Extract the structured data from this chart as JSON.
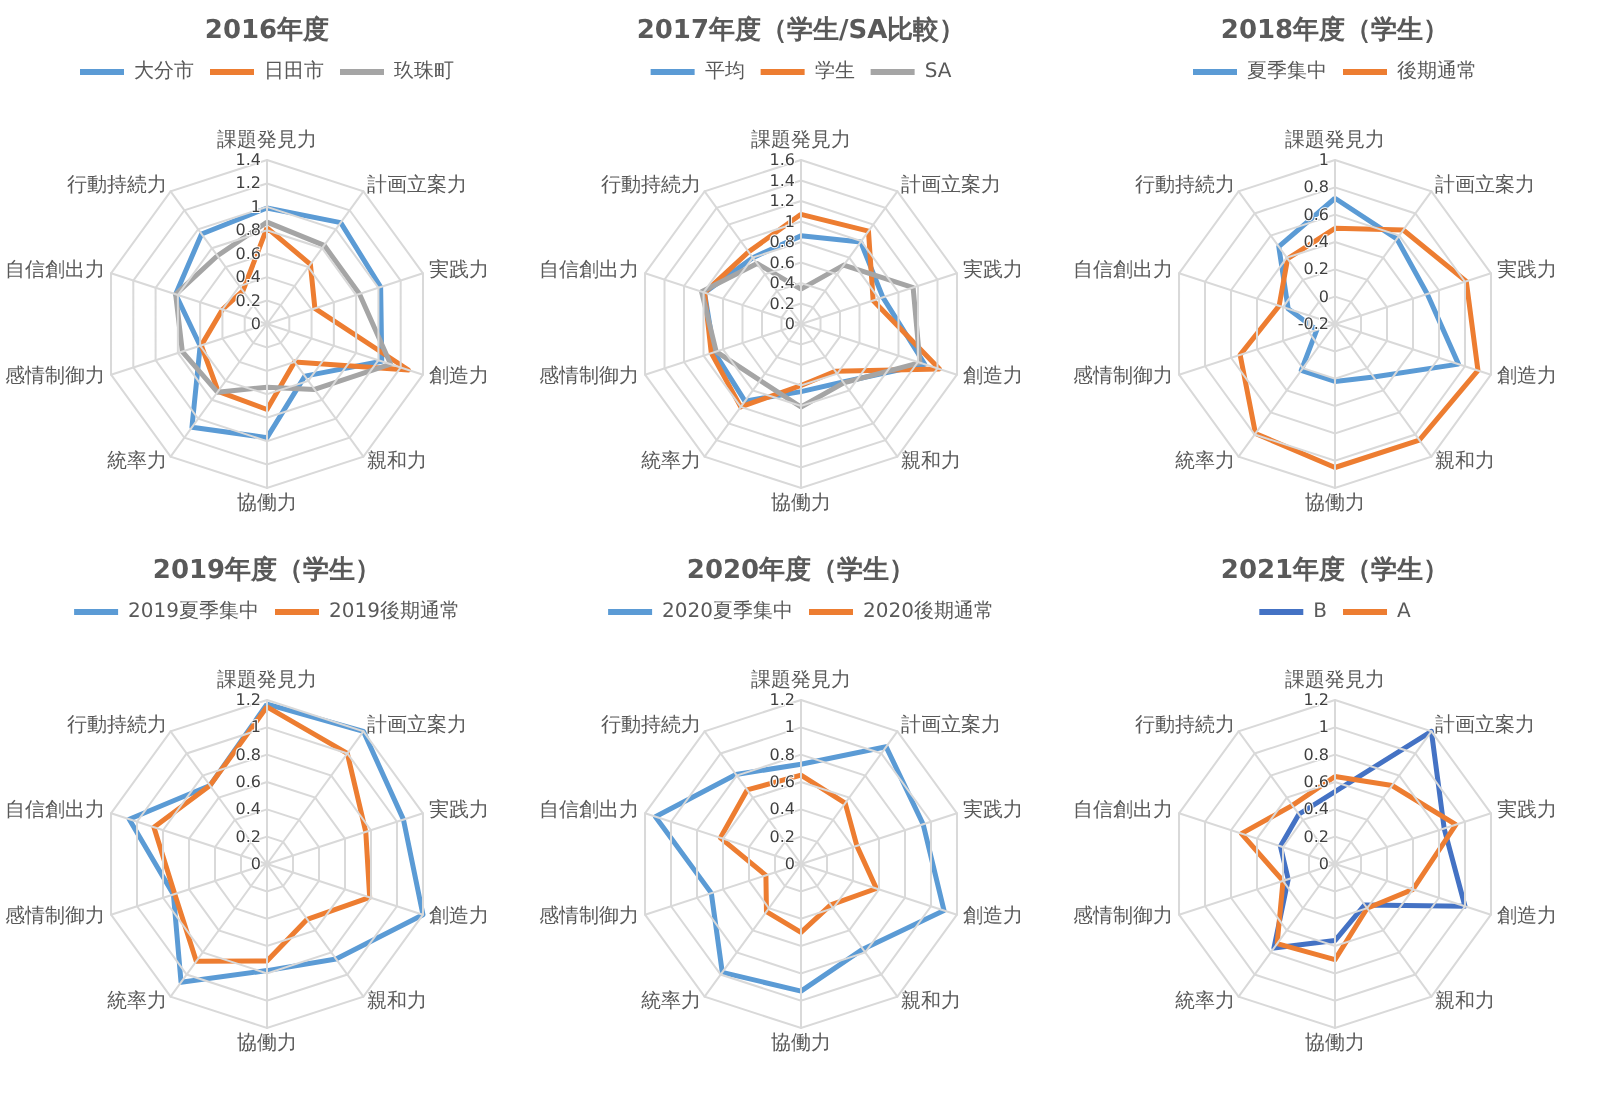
{
  "chart_data": [
    {
      "type": "radar",
      "title": "2016年度",
      "categories": [
        "課題発見力",
        "計画立案力",
        "実践力",
        "創造力",
        "親和力",
        "協働力",
        "統率力",
        "感情制御力",
        "自信創出力",
        "行動持続力"
      ],
      "ylim": [
        0,
        1.4
      ],
      "yticks": [
        0,
        0.2,
        0.4,
        0.6,
        0.8,
        1,
        1.2,
        1.4
      ],
      "grid": true,
      "legend": "top",
      "marker": "none",
      "series": [
        {
          "name": "大分市",
          "color": "#5b9bd5",
          "values": [
            0.99,
            1.07,
            1.02,
            1.03,
            0.55,
            0.97,
            1.09,
            0.6,
            0.82,
            0.95
          ]
        },
        {
          "name": "日田市",
          "color": "#ed7d31",
          "values": [
            0.82,
            0.63,
            0.43,
            1.27,
            0.4,
            0.73,
            0.71,
            0.59,
            0.4,
            0.35
          ]
        },
        {
          "name": "玖珠町",
          "color": "#a5a5a5",
          "values": [
            0.87,
            0.83,
            0.83,
            1.11,
            0.69,
            0.54,
            0.72,
            0.76,
            0.82,
            0.72
          ]
        }
      ]
    },
    {
      "type": "radar",
      "title": "2017年度（学生/SA比較）",
      "categories": [
        "課題発見力",
        "計画立案力",
        "実践力",
        "創造力",
        "親和力",
        "協働力",
        "統率力",
        "感情制御力",
        "自信創出力",
        "行動持続力"
      ],
      "ylim": [
        0,
        1.6
      ],
      "yticks": [
        0,
        0.2,
        0.4,
        0.6,
        0.8,
        1,
        1.2,
        1.4,
        1.6
      ],
      "grid": true,
      "legend": "top",
      "marker": "none",
      "series": [
        {
          "name": "平均",
          "color": "#5b9bd5",
          "values": [
            0.86,
            0.99,
            0.84,
            1.27,
            0.7,
            0.66,
            0.93,
            0.89,
            0.99,
            0.8
          ]
        },
        {
          "name": "学生",
          "color": "#ed7d31",
          "values": [
            1.07,
            1.12,
            0.74,
            1.42,
            0.57,
            0.6,
            1.0,
            0.92,
            0.99,
            0.87
          ]
        },
        {
          "name": "SA",
          "color": "#a5a5a5",
          "values": [
            0.34,
            0.71,
            1.15,
            1.22,
            0.71,
            0.81,
            0.68,
            0.87,
            1.02,
            0.73
          ]
        }
      ]
    },
    {
      "type": "radar",
      "title": "2018年度（学生）",
      "categories": [
        "課題発見力",
        "計画立案力",
        "実践力",
        "創造力",
        "親和力",
        "協働力",
        "統率力",
        "感情制御力",
        "自信創出力",
        "行動持続力"
      ],
      "ylim": [
        -0.2,
        1
      ],
      "yticks": [
        -0.2,
        0,
        0.2,
        0.4,
        0.6,
        0.8,
        1
      ],
      "grid": true,
      "legend": "top",
      "marker": "none",
      "series": [
        {
          "name": "夏季集中",
          "color": "#5b9bd5",
          "values": [
            0.72,
            0.57,
            0.51,
            0.75,
            0.28,
            0.22,
            0.22,
            -0.06,
            0.16,
            0.5
          ]
        },
        {
          "name": "後期通常",
          "color": "#ed7d31",
          "values": [
            0.5,
            0.65,
            0.81,
            0.9,
            0.85,
            0.85,
            0.79,
            0.53,
            0.23,
            0.39
          ]
        }
      ]
    },
    {
      "type": "radar",
      "title": "2019年度（学生）",
      "categories": [
        "課題発見力",
        "計画立案力",
        "実践力",
        "創造力",
        "親和力",
        "協働力",
        "統率力",
        "感情制御力",
        "自信創出力",
        "行動持続力"
      ],
      "ylim": [
        0,
        1.2
      ],
      "yticks": [
        0,
        0.2,
        0.4,
        0.6,
        0.8,
        1,
        1.2
      ],
      "grid": true,
      "legend": "top",
      "marker": "none",
      "series": [
        {
          "name": "2019夏季集中",
          "color": "#5b9bd5",
          "values": [
            1.17,
            1.2,
            1.05,
            1.2,
            0.86,
            0.78,
            1.07,
            0.72,
            1.06,
            0.71
          ]
        },
        {
          "name": "2019後期通常",
          "color": "#ed7d31",
          "values": [
            1.15,
            1.0,
            0.76,
            0.79,
            0.5,
            0.71,
            0.88,
            0.71,
            0.87,
            0.71
          ]
        }
      ]
    },
    {
      "type": "radar",
      "title": "2020年度（学生）",
      "categories": [
        "課題発見力",
        "計画立案力",
        "実践力",
        "創造力",
        "親和力",
        "協働力",
        "統率力",
        "感情制御力",
        "自信創出力",
        "行動持続力"
      ],
      "ylim": [
        0,
        1.2
      ],
      "yticks": [
        0,
        0.2,
        0.4,
        0.6,
        0.8,
        1,
        1.2
      ],
      "grid": true,
      "legend": "top",
      "marker": "none",
      "series": [
        {
          "name": "2020夏季集中",
          "color": "#5b9bd5",
          "values": [
            0.73,
            1.06,
            0.94,
            1.1,
            0.77,
            0.93,
            0.98,
            0.69,
            1.12,
            0.81
          ]
        },
        {
          "name": "2020後期通常",
          "color": "#ed7d31",
          "values": [
            0.65,
            0.55,
            0.43,
            0.58,
            0.37,
            0.5,
            0.43,
            0.27,
            0.62,
            0.67
          ]
        }
      ]
    },
    {
      "type": "radar",
      "title": "2021年度（学生）",
      "categories": [
        "課題発見力",
        "計画立案力",
        "実践力",
        "創造力",
        "親和力",
        "協働力",
        "統率力",
        "感情制御力",
        "自信創出力",
        "行動持続力"
      ],
      "ylim": [
        0,
        1.2
      ],
      "yticks": [
        0,
        0.2,
        0.4,
        0.6,
        0.8,
        1,
        1.2
      ],
      "grid": true,
      "legend": "top",
      "marker": "none",
      "series": [
        {
          "name": "B",
          "color": "#4472c4",
          "values": [
            0.53,
            1.2,
            0.84,
            1.0,
            0.37,
            0.56,
            0.76,
            0.36,
            0.42,
            0.45
          ]
        },
        {
          "name": "A",
          "color": "#ed7d31",
          "values": [
            0.64,
            0.71,
            0.93,
            0.6,
            0.4,
            0.7,
            0.72,
            0.4,
            0.72,
            0.53
          ]
        }
      ]
    }
  ]
}
